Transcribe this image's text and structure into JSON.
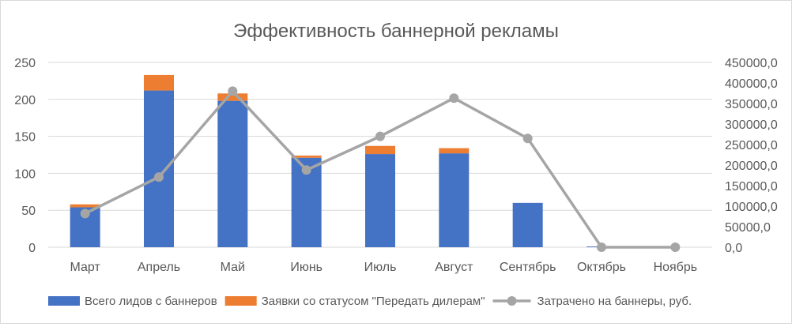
{
  "chart_data": {
    "type": "bar",
    "title": "Эффективность баннерной рекламы",
    "categories": [
      "Март",
      "Апрель",
      "Май",
      "Июнь",
      "Июль",
      "Август",
      "Сентябрь",
      "Октябрь",
      "Ноябрь"
    ],
    "stacked": true,
    "series": [
      {
        "name": "Всего лидов с баннеров",
        "type": "bar",
        "axis": "left",
        "color": "#4472c4",
        "values": [
          54,
          212,
          198,
          121,
          126,
          127,
          60,
          1,
          0
        ]
      },
      {
        "name": "Заявки со статусом \"Передать дилерам\"",
        "type": "bar",
        "axis": "left",
        "color": "#ed7d31",
        "values": [
          4,
          21,
          10,
          3,
          11,
          7,
          0,
          0,
          0
        ]
      },
      {
        "name": "Затрачено на баннеры, руб.",
        "type": "line",
        "axis": "right",
        "color": "#a5a5a5",
        "values": [
          82000,
          171000,
          380000,
          188000,
          270000,
          363000,
          265000,
          0,
          0
        ]
      }
    ],
    "y_left": {
      "ylim": [
        0,
        250
      ],
      "ticks": [
        "0",
        "50",
        "100",
        "150",
        "200",
        "250"
      ],
      "tick_values": [
        0,
        50,
        100,
        150,
        200,
        250
      ]
    },
    "y_right": {
      "ylim": [
        0,
        450000
      ],
      "ticks": [
        "0,0",
        "50000,0",
        "100000,0",
        "150000,0",
        "200000,0",
        "250000,0",
        "300000,0",
        "350000,0",
        "400000,0",
        "450000,0"
      ],
      "tick_values": [
        0,
        50000,
        100000,
        150000,
        200000,
        250000,
        300000,
        350000,
        400000,
        450000
      ]
    },
    "grid": true,
    "legend_position": "bottom"
  }
}
